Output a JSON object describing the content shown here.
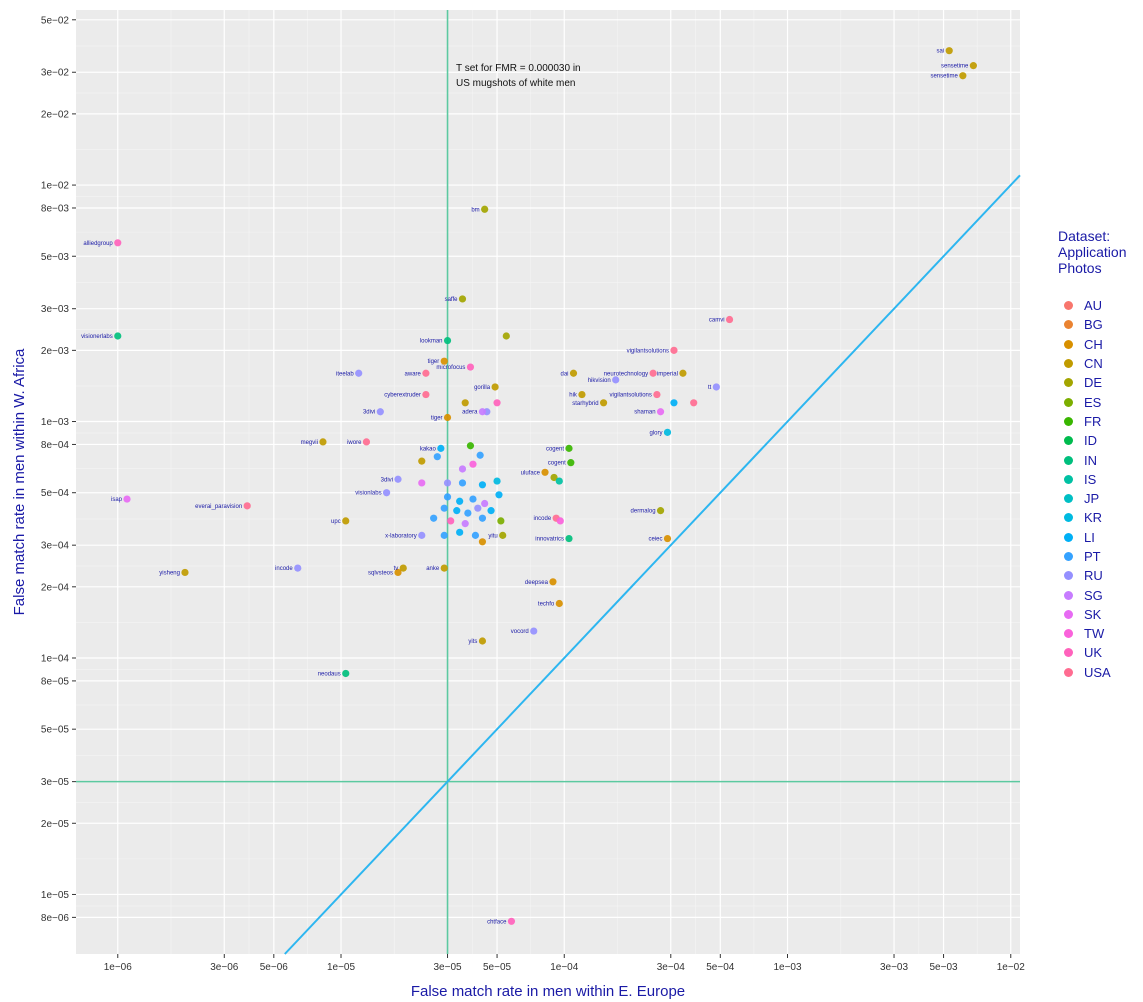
{
  "chart_data": {
    "type": "scatter",
    "xlabel": "False match rate in men within E. Europe",
    "ylabel": "False match rate in men within W. Africa",
    "x_scale": "log",
    "y_scale": "log",
    "xlim": [
      6.5e-07,
      0.011
    ],
    "ylim": [
      5.6e-06,
      0.055
    ],
    "x_ticks": [
      {
        "value": 1e-06,
        "label": "1e−06"
      },
      {
        "value": 3e-06,
        "label": "3e−06"
      },
      {
        "value": 5e-06,
        "label": "5e−06"
      },
      {
        "value": 1e-05,
        "label": "1e−05"
      },
      {
        "value": 3e-05,
        "label": "3e−05"
      },
      {
        "value": 5e-05,
        "label": "5e−05"
      },
      {
        "value": 0.0001,
        "label": "1e−04"
      },
      {
        "value": 0.0003,
        "label": "3e−04"
      },
      {
        "value": 0.0005,
        "label": "5e−04"
      },
      {
        "value": 0.001,
        "label": "1e−03"
      },
      {
        "value": 0.003,
        "label": "3e−03"
      },
      {
        "value": 0.005,
        "label": "5e−03"
      },
      {
        "value": 0.01,
        "label": "1e−02"
      }
    ],
    "y_ticks": [
      {
        "value": 8e-06,
        "label": "8e−06"
      },
      {
        "value": 1e-05,
        "label": "1e−05"
      },
      {
        "value": 2e-05,
        "label": "2e−05"
      },
      {
        "value": 3e-05,
        "label": "3e−05"
      },
      {
        "value": 5e-05,
        "label": "5e−05"
      },
      {
        "value": 8e-05,
        "label": "8e−05"
      },
      {
        "value": 0.0001,
        "label": "1e−04"
      },
      {
        "value": 0.0002,
        "label": "2e−04"
      },
      {
        "value": 0.0003,
        "label": "3e−04"
      },
      {
        "value": 0.0005,
        "label": "5e−04"
      },
      {
        "value": 0.0008,
        "label": "8e−04"
      },
      {
        "value": 0.001,
        "label": "1e−03"
      },
      {
        "value": 0.002,
        "label": "2e−03"
      },
      {
        "value": 0.003,
        "label": "3e−03"
      },
      {
        "value": 0.005,
        "label": "5e−03"
      },
      {
        "value": 0.008,
        "label": "8e−03"
      },
      {
        "value": 0.01,
        "label": "1e−02"
      },
      {
        "value": 0.02,
        "label": "2e−02"
      },
      {
        "value": 0.03,
        "label": "3e−02"
      },
      {
        "value": 0.05,
        "label": "5e−02"
      }
    ],
    "grid": true,
    "reference_lines": {
      "vertical_x": 3e-05,
      "horizontal_y": 3e-05,
      "threshold_color": "#5cc9a0",
      "diagonal": "y = x",
      "diagonal_color": "#2db6f0"
    },
    "annotation": [
      "T set for FMR = 0.000030 in",
      "US mugshots of white men"
    ],
    "legend": {
      "title": [
        "Dataset:",
        "Application",
        "Photos"
      ],
      "position": "right",
      "entries": [
        {
          "name": "AU",
          "color": "#f8766d"
        },
        {
          "name": "BG",
          "color": "#ea8331"
        },
        {
          "name": "CH",
          "color": "#d89000"
        },
        {
          "name": "CN",
          "color": "#c09b00"
        },
        {
          "name": "DE",
          "color": "#a3a500"
        },
        {
          "name": "ES",
          "color": "#7cae00"
        },
        {
          "name": "FR",
          "color": "#39b600"
        },
        {
          "name": "ID",
          "color": "#00bb4e"
        },
        {
          "name": "IN",
          "color": "#00bf7d"
        },
        {
          "name": "IS",
          "color": "#00c1a3"
        },
        {
          "name": "JP",
          "color": "#00bfc4"
        },
        {
          "name": "KR",
          "color": "#00bae0"
        },
        {
          "name": "LI",
          "color": "#00b0f6"
        },
        {
          "name": "PT",
          "color": "#35a2ff"
        },
        {
          "name": "RU",
          "color": "#9590ff"
        },
        {
          "name": "SG",
          "color": "#c77cff"
        },
        {
          "name": "SK",
          "color": "#e76bf3"
        },
        {
          "name": "TW",
          "color": "#fa62db"
        },
        {
          "name": "UK",
          "color": "#ff62bc"
        },
        {
          "name": "USA",
          "color": "#ff6c91"
        }
      ]
    },
    "points": [
      {
        "label": "sai",
        "x": 0.0053,
        "y": 0.037,
        "country": "CN"
      },
      {
        "label": "sensetime",
        "x": 0.0068,
        "y": 0.032,
        "country": "CN"
      },
      {
        "label": "sensetime",
        "x": 0.0061,
        "y": 0.029,
        "country": "CN"
      },
      {
        "label": "bm",
        "x": 4.4e-05,
        "y": 0.0079,
        "country": "DE"
      },
      {
        "label": "alliedgroup",
        "x": 1e-06,
        "y": 0.0057,
        "country": "UK"
      },
      {
        "label": "saffe",
        "x": 3.5e-05,
        "y": 0.0033,
        "country": "DE"
      },
      {
        "label": "visionerlabs",
        "x": 1e-06,
        "y": 0.0023,
        "country": "IN"
      },
      {
        "label": "camvi",
        "x": 0.00055,
        "y": 0.0027,
        "country": "USA"
      },
      {
        "label": "lookman",
        "x": 3e-05,
        "y": 0.0022,
        "country": "IN"
      },
      {
        "label": "",
        "x": 5.5e-05,
        "y": 0.0023,
        "country": "DE"
      },
      {
        "label": "vigilantsolutions",
        "x": 0.00031,
        "y": 0.002,
        "country": "USA"
      },
      {
        "label": "tiger",
        "x": 2.9e-05,
        "y": 0.0018,
        "country": "CH"
      },
      {
        "label": "microfocus",
        "x": 3.8e-05,
        "y": 0.0017,
        "country": "UK"
      },
      {
        "label": "iteelab",
        "x": 1.2e-05,
        "y": 0.0016,
        "country": "RU"
      },
      {
        "label": "aware",
        "x": 2.4e-05,
        "y": 0.0016,
        "country": "USA"
      },
      {
        "label": "dai",
        "x": 0.00011,
        "y": 0.0016,
        "country": "CN"
      },
      {
        "label": "hikvision",
        "x": 0.00017,
        "y": 0.0015,
        "country": "RU"
      },
      {
        "label": "neurotechnology",
        "x": 0.00025,
        "y": 0.0016,
        "country": "USA"
      },
      {
        "label": "imperial",
        "x": 0.00034,
        "y": 0.0016,
        "country": "CN"
      },
      {
        "label": "tt",
        "x": 0.00048,
        "y": 0.0014,
        "country": "RU"
      },
      {
        "label": "gorilla",
        "x": 4.9e-05,
        "y": 0.0014,
        "country": "CN"
      },
      {
        "label": "cyberextruder",
        "x": 2.4e-05,
        "y": 0.0013,
        "country": "USA"
      },
      {
        "label": "hik",
        "x": 0.00012,
        "y": 0.0013,
        "country": "CN"
      },
      {
        "label": "vigilantsolutions",
        "x": 0.00026,
        "y": 0.0013,
        "country": "USA"
      },
      {
        "label": "starhybrid",
        "x": 0.00015,
        "y": 0.0012,
        "country": "CN"
      },
      {
        "label": "",
        "x": 3.6e-05,
        "y": 0.0012,
        "country": "CN"
      },
      {
        "label": "",
        "x": 5e-05,
        "y": 0.0012,
        "country": "UK"
      },
      {
        "label": "",
        "x": 4.5e-05,
        "y": 0.0011,
        "country": "RU"
      },
      {
        "label": "adera",
        "x": 4.3e-05,
        "y": 0.0011,
        "country": "SG"
      },
      {
        "label": "shaman",
        "x": 0.00027,
        "y": 0.0011,
        "country": "SK"
      },
      {
        "label": "",
        "x": 0.00031,
        "y": 0.0012,
        "country": "LI"
      },
      {
        "label": "",
        "x": 0.00038,
        "y": 0.0012,
        "country": "USA"
      },
      {
        "label": "3divi",
        "x": 1.5e-05,
        "y": 0.0011,
        "country": "RU"
      },
      {
        "label": "tiger",
        "x": 3e-05,
        "y": 0.00104,
        "country": "CH"
      },
      {
        "label": "glory",
        "x": 0.00029,
        "y": 0.0009,
        "country": "KR"
      },
      {
        "label": "megvii",
        "x": 8.3e-06,
        "y": 0.00082,
        "country": "CN"
      },
      {
        "label": "iwore",
        "x": 1.3e-05,
        "y": 0.00082,
        "country": "USA"
      },
      {
        "label": "kakao",
        "x": 2.8e-05,
        "y": 0.00077,
        "country": "LI"
      },
      {
        "label": "",
        "x": 3.8e-05,
        "y": 0.00079,
        "country": "FR"
      },
      {
        "label": "cogent",
        "x": 0.000105,
        "y": 0.00077,
        "country": "FR"
      },
      {
        "label": "",
        "x": 2.3e-05,
        "y": 0.00068,
        "country": "CN"
      },
      {
        "label": "",
        "x": 2.7e-05,
        "y": 0.00071,
        "country": "PT"
      },
      {
        "label": "",
        "x": 4.2e-05,
        "y": 0.00072,
        "country": "PT"
      },
      {
        "label": "cogent",
        "x": 0.000107,
        "y": 0.00067,
        "country": "FR"
      },
      {
        "label": "",
        "x": 3.5e-05,
        "y": 0.00063,
        "country": "SG"
      },
      {
        "label": "",
        "x": 3.9e-05,
        "y": 0.00066,
        "country": "TW"
      },
      {
        "label": "uluface",
        "x": 8.2e-05,
        "y": 0.00061,
        "country": "CH"
      },
      {
        "label": "3divi",
        "x": 1.8e-05,
        "y": 0.00057,
        "country": "RU"
      },
      {
        "label": "",
        "x": 2.3e-05,
        "y": 0.00055,
        "country": "SK"
      },
      {
        "label": "",
        "x": 3e-05,
        "y": 0.00055,
        "country": "RU"
      },
      {
        "label": "",
        "x": 3.5e-05,
        "y": 0.00055,
        "country": "PT"
      },
      {
        "label": "",
        "x": 4.3e-05,
        "y": 0.00054,
        "country": "LI"
      },
      {
        "label": "",
        "x": 5e-05,
        "y": 0.00056,
        "country": "KR"
      },
      {
        "label": "",
        "x": 9e-05,
        "y": 0.00058,
        "country": "DE"
      },
      {
        "label": "",
        "x": 9.5e-05,
        "y": 0.00056,
        "country": "IS"
      },
      {
        "label": "visionlabs",
        "x": 1.6e-05,
        "y": 0.0005,
        "country": "RU"
      },
      {
        "label": "isap",
        "x": 1.1e-06,
        "y": 0.00047,
        "country": "SK"
      },
      {
        "label": "everai_paravision",
        "x": 3.8e-06,
        "y": 0.00044,
        "country": "USA"
      },
      {
        "label": "",
        "x": 3e-05,
        "y": 0.00048,
        "country": "PT"
      },
      {
        "label": "",
        "x": 3.4e-05,
        "y": 0.00046,
        "country": "LI"
      },
      {
        "label": "",
        "x": 3.9e-05,
        "y": 0.00047,
        "country": "PT"
      },
      {
        "label": "",
        "x": 4.4e-05,
        "y": 0.00045,
        "country": "SG"
      },
      {
        "label": "",
        "x": 5.1e-05,
        "y": 0.00049,
        "country": "LI"
      },
      {
        "label": "",
        "x": 2.9e-05,
        "y": 0.00043,
        "country": "PT"
      },
      {
        "label": "",
        "x": 3.3e-05,
        "y": 0.00042,
        "country": "LI"
      },
      {
        "label": "",
        "x": 3.7e-05,
        "y": 0.00041,
        "country": "PT"
      },
      {
        "label": "",
        "x": 4.1e-05,
        "y": 0.00043,
        "country": "RU"
      },
      {
        "label": "",
        "x": 4.7e-05,
        "y": 0.00042,
        "country": "LI"
      },
      {
        "label": "",
        "x": 2.6e-05,
        "y": 0.00039,
        "country": "PT"
      },
      {
        "label": "",
        "x": 3.1e-05,
        "y": 0.00038,
        "country": "UK"
      },
      {
        "label": "",
        "x": 3.6e-05,
        "y": 0.00037,
        "country": "SG"
      },
      {
        "label": "",
        "x": 4.3e-05,
        "y": 0.00039,
        "country": "PT"
      },
      {
        "label": "",
        "x": 5.2e-05,
        "y": 0.00038,
        "country": "ES"
      },
      {
        "label": "upc",
        "x": 1.05e-05,
        "y": 0.00038,
        "country": "CN"
      },
      {
        "label": "dermalog",
        "x": 0.00027,
        "y": 0.00042,
        "country": "DE"
      },
      {
        "label": "incode",
        "x": 9.2e-05,
        "y": 0.00039,
        "country": "USA"
      },
      {
        "label": "",
        "x": 9.6e-05,
        "y": 0.00038,
        "country": "TW"
      },
      {
        "label": "x-laboratory",
        "x": 2.3e-05,
        "y": 0.00033,
        "country": "RU"
      },
      {
        "label": "",
        "x": 2.9e-05,
        "y": 0.00033,
        "country": "PT"
      },
      {
        "label": "",
        "x": 3.4e-05,
        "y": 0.00034,
        "country": "LI"
      },
      {
        "label": "",
        "x": 4e-05,
        "y": 0.00033,
        "country": "PT"
      },
      {
        "label": "",
        "x": 4.3e-05,
        "y": 0.00031,
        "country": "CH"
      },
      {
        "label": "yitu",
        "x": 5.3e-05,
        "y": 0.00033,
        "country": "DE"
      },
      {
        "label": "innovatrics",
        "x": 0.000105,
        "y": 0.00032,
        "country": "IN"
      },
      {
        "label": "ceiec",
        "x": 0.00029,
        "y": 0.00032,
        "country": "CH"
      },
      {
        "label": "incode",
        "x": 6.4e-06,
        "y": 0.00024,
        "country": "RU"
      },
      {
        "label": "yisheng",
        "x": 2e-06,
        "y": 0.00023,
        "country": "CN"
      },
      {
        "label": "tv",
        "x": 1.9e-05,
        "y": 0.00024,
        "country": "CN"
      },
      {
        "label": "sqlvsteos",
        "x": 1.8e-05,
        "y": 0.00023,
        "country": "CH"
      },
      {
        "label": "anke",
        "x": 2.9e-05,
        "y": 0.00024,
        "country": "CN"
      },
      {
        "label": "deepsea",
        "x": 8.9e-05,
        "y": 0.00021,
        "country": "CH"
      },
      {
        "label": "techfo",
        "x": 9.5e-05,
        "y": 0.00017,
        "country": "CH"
      },
      {
        "label": "vocord",
        "x": 7.3e-05,
        "y": 0.00013,
        "country": "RU"
      },
      {
        "label": "yits",
        "x": 4.3e-05,
        "y": 0.000118,
        "country": "CN"
      },
      {
        "label": "neodaus",
        "x": 1.05e-05,
        "y": 8.6e-05,
        "country": "IN"
      },
      {
        "label": "chtface",
        "x": 5.8e-05,
        "y": 7.7e-06,
        "country": "UK"
      }
    ]
  }
}
